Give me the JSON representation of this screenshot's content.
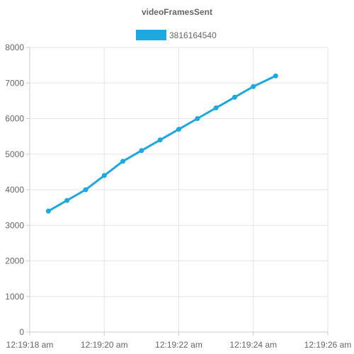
{
  "chart_data": {
    "type": "line",
    "title": "videoFramesSent",
    "xlabel": "",
    "ylabel": "",
    "legend_position": "top",
    "grid": true,
    "x_ticks": [
      "12:19:18 am",
      "12:19:20 am",
      "12:19:22 am",
      "12:19:24 am",
      "12:19:26 am"
    ],
    "x_range_seconds": [
      0,
      8
    ],
    "ylim": [
      0,
      8000
    ],
    "y_ticks": [
      0,
      1000,
      2000,
      3000,
      4000,
      5000,
      6000,
      7000,
      8000
    ],
    "series": [
      {
        "name": "3816164540",
        "color": "#1ea8e0",
        "x_seconds": [
          0.5,
          1.0,
          1.5,
          2.0,
          2.5,
          3.0,
          3.5,
          4.0,
          4.5,
          5.0,
          5.5,
          6.0,
          6.6
        ],
        "values": [
          3400,
          3700,
          4000,
          4400,
          4800,
          5100,
          5400,
          5700,
          6000,
          6300,
          6600,
          6900,
          7200
        ]
      }
    ]
  }
}
